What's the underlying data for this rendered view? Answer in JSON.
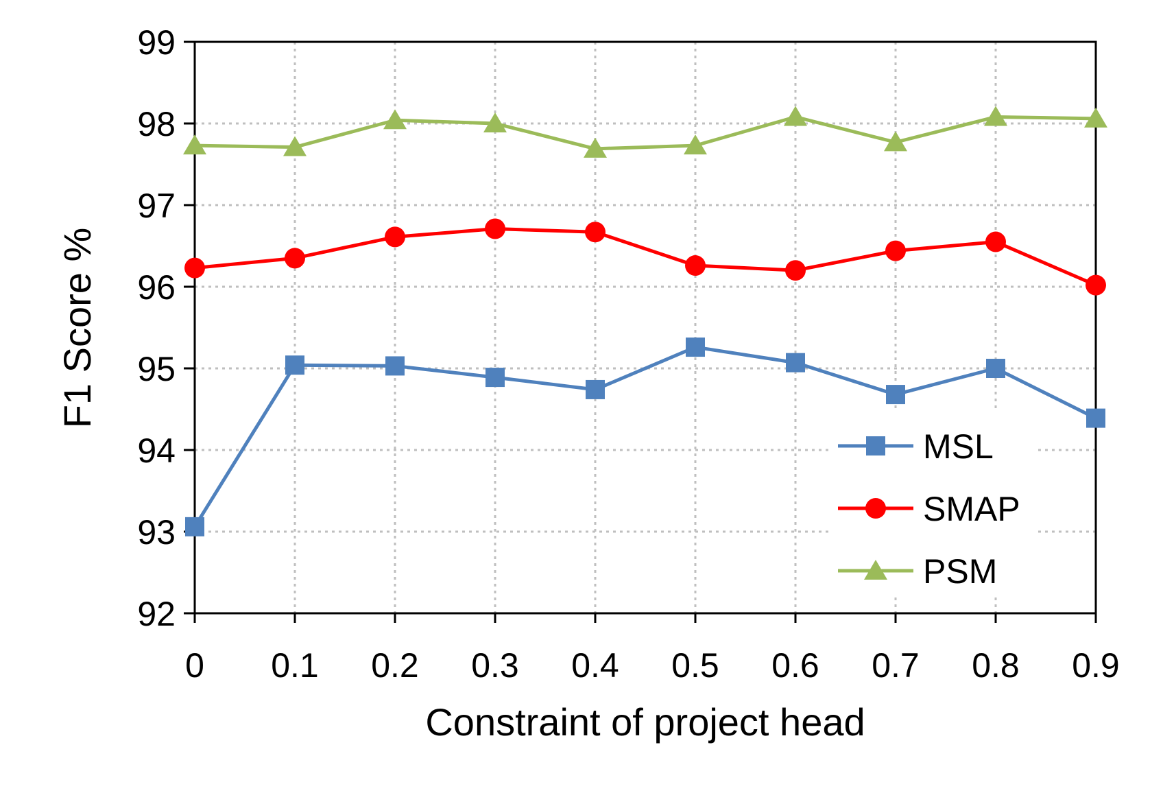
{
  "chart_data": {
    "type": "line",
    "title": "",
    "xlabel": "Constraint of project head",
    "ylabel": "F1  Score %",
    "x": [
      "0",
      "0.1",
      "0.2",
      "0.3",
      "0.4",
      "0.5",
      "0.6",
      "0.7",
      "0.8",
      "0.9"
    ],
    "ylim": [
      92,
      99
    ],
    "yticks": [
      "92",
      "93",
      "94",
      "95",
      "96",
      "97",
      "98",
      "99"
    ],
    "grid": true,
    "legend_position": "lower-right",
    "series": [
      {
        "name": "MSL",
        "color": "#4f81bd",
        "marker": "square",
        "values": [
          93.06,
          95.04,
          95.03,
          94.89,
          94.74,
          95.26,
          95.07,
          94.68,
          95.0,
          94.39
        ]
      },
      {
        "name": "SMAP",
        "color": "#ff0000",
        "marker": "circle",
        "values": [
          96.23,
          96.35,
          96.61,
          96.71,
          96.67,
          96.26,
          96.2,
          96.44,
          96.55,
          96.02
        ]
      },
      {
        "name": "PSM",
        "color": "#9bbb59",
        "marker": "triangle",
        "values": [
          97.73,
          97.71,
          98.04,
          98.0,
          97.69,
          97.73,
          98.08,
          97.77,
          98.08,
          98.06
        ]
      }
    ]
  }
}
